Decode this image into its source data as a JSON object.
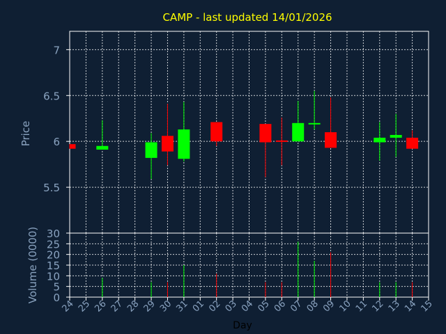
{
  "chart_data": {
    "type": "candlestick",
    "title": "CAMP - last updated 14/01/2026",
    "xlabel": "Day",
    "price_panel": {
      "ylabel": "Price",
      "ylim": [
        5.0,
        7.2
      ],
      "yticks": [
        5.5,
        6,
        6.5,
        7
      ],
      "ytick_labels": [
        "5.5",
        "6",
        "6.5",
        "7"
      ]
    },
    "volume_panel": {
      "ylabel": "Volume (0000)",
      "ylim": [
        0,
        30
      ],
      "yticks": [
        0,
        5,
        10,
        15,
        20,
        25,
        30
      ],
      "ytick_labels": [
        "0",
        "5",
        "10",
        "15",
        "20",
        "25",
        "30"
      ]
    },
    "x_ticks": [
      "24",
      "25",
      "26",
      "27",
      "28",
      "29",
      "30",
      "31",
      "01",
      "02",
      "03",
      "04",
      "05",
      "06",
      "07",
      "08",
      "09",
      "10",
      "11",
      "12",
      "13",
      "14",
      "15"
    ],
    "grid": true,
    "colors": {
      "up": "#00ff00",
      "down": "#ff0000",
      "title": "#ffff00",
      "background": "#0f1f33",
      "axis": "#ffffff"
    },
    "candles": [
      {
        "day": "24",
        "open": 5.97,
        "high": 5.97,
        "low": 5.92,
        "close": 5.92,
        "volume": 0
      },
      {
        "day": "26",
        "open": 5.91,
        "high": 6.23,
        "low": 5.91,
        "close": 5.95,
        "volume": 9
      },
      {
        "day": "29",
        "open": 5.82,
        "high": 6.09,
        "low": 5.59,
        "close": 5.99,
        "volume": 7
      },
      {
        "day": "30",
        "open": 6.06,
        "high": 6.41,
        "low": 5.74,
        "close": 5.89,
        "volume": 7
      },
      {
        "day": "31",
        "open": 5.81,
        "high": 6.43,
        "low": 5.78,
        "close": 6.13,
        "volume": 15
      },
      {
        "day": "02",
        "open": 6.21,
        "high": 6.21,
        "low": 5.95,
        "close": 6.0,
        "volume": 11
      },
      {
        "day": "05",
        "open": 6.19,
        "high": 6.19,
        "low": 5.61,
        "close": 5.99,
        "volume": 7
      },
      {
        "day": "06",
        "open": 6.01,
        "high": 6.26,
        "low": 5.74,
        "close": 6.0,
        "volume": 7
      },
      {
        "day": "07",
        "open": 6.0,
        "high": 6.44,
        "low": 6.0,
        "close": 6.2,
        "volume": 26
      },
      {
        "day": "08",
        "open": 6.2,
        "high": 6.55,
        "low": 6.13,
        "close": 6.2,
        "volume": 17
      },
      {
        "day": "09",
        "open": 6.1,
        "high": 6.48,
        "low": 5.93,
        "close": 5.93,
        "volume": 21
      },
      {
        "day": "12",
        "open": 5.99,
        "high": 6.21,
        "low": 5.79,
        "close": 6.04,
        "volume": 7
      },
      {
        "day": "13",
        "open": 6.04,
        "high": 6.3,
        "low": 5.83,
        "close": 6.07,
        "volume": 7
      },
      {
        "day": "14",
        "open": 6.04,
        "high": 6.12,
        "low": 5.92,
        "close": 5.92,
        "volume": 7
      }
    ]
  }
}
